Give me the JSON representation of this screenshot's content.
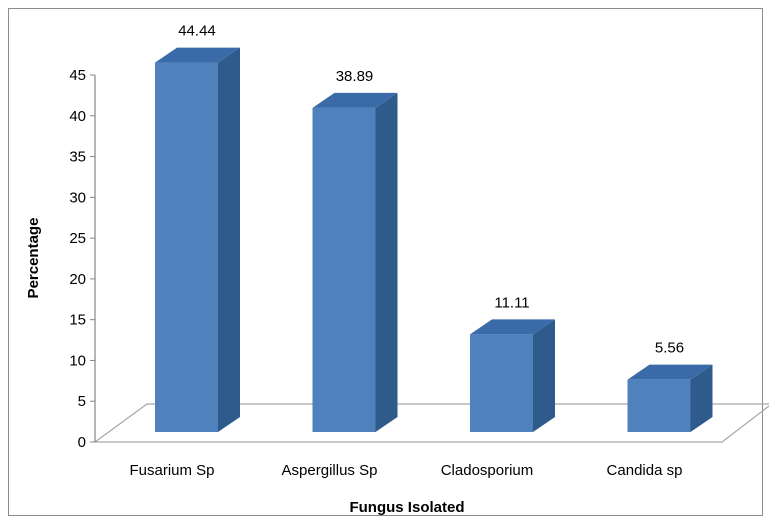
{
  "chart_data": {
    "type": "bar",
    "style": "3d-column",
    "categories": [
      "Fusarium Sp",
      "Aspergillus Sp",
      "Cladosporium",
      "Candida sp"
    ],
    "values": [
      44.44,
      38.89,
      11.11,
      5.56
    ],
    "data_labels": [
      "44.44",
      "38.89",
      "11.11",
      "5.56"
    ],
    "xlabel": "Fungus Isolated",
    "ylabel": "Percentage",
    "ylim": [
      0,
      45
    ],
    "yticks": [
      0,
      5,
      10,
      15,
      20,
      25,
      30,
      35,
      40,
      45
    ],
    "grid": false,
    "legend": "none",
    "colors": {
      "bar_front": "#4f81bd",
      "bar_side": "#2f5b8c",
      "bar_top": "#3a6ba8",
      "floor_line": "#a6a6a6"
    }
  }
}
